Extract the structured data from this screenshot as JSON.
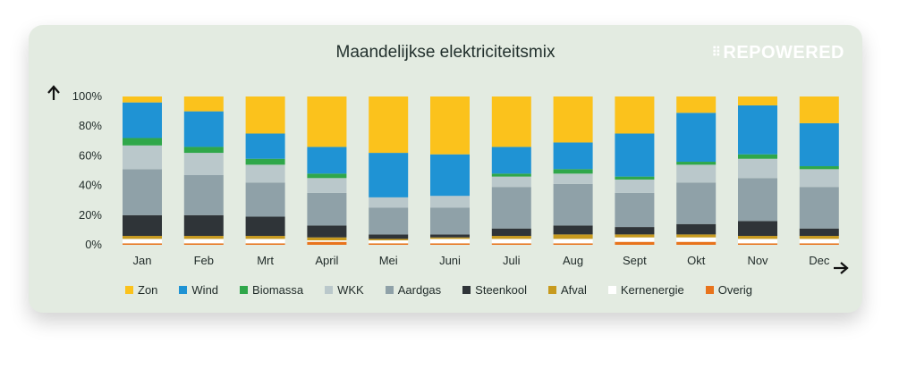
{
  "brand": {
    "mark": "⠿",
    "name": "REPOWERED"
  },
  "chart_data": {
    "type": "bar",
    "stacked": true,
    "title": "Maandelijkse elektriciteitsmix",
    "yticks": [
      "100%",
      "80%",
      "60%",
      "40%",
      "20%",
      "0%"
    ],
    "ylim": [
      0,
      100
    ],
    "categories": [
      "Jan",
      "Feb",
      "Mrt",
      "April",
      "Mei",
      "Juni",
      "Juli",
      "Aug",
      "Sept",
      "Okt",
      "Nov",
      "Dec"
    ],
    "series": [
      {
        "name": "Overig",
        "color": "#e8731c",
        "values": [
          1,
          1,
          1,
          2,
          1,
          1,
          1,
          1,
          2,
          2,
          1,
          1
        ]
      },
      {
        "name": "Kernenergie",
        "color": "#ffffff",
        "values": [
          3,
          3,
          3,
          1,
          2,
          3,
          3,
          3,
          3,
          3,
          3,
          3
        ]
      },
      {
        "name": "Afval",
        "color": "#c79a1e",
        "values": [
          2,
          2,
          2,
          2,
          1,
          1,
          2,
          3,
          2,
          2,
          2,
          2
        ]
      },
      {
        "name": "Steenkool",
        "color": "#2f3438",
        "values": [
          14,
          14,
          13,
          8,
          3,
          2,
          5,
          6,
          5,
          7,
          10,
          5
        ]
      },
      {
        "name": "Aardgas",
        "color": "#8fa1a8",
        "values": [
          31,
          27,
          23,
          22,
          18,
          18,
          28,
          28,
          23,
          28,
          29,
          28
        ]
      },
      {
        "name": "WKK",
        "color": "#bac8cb",
        "values": [
          16,
          15,
          12,
          10,
          7,
          8,
          7,
          7,
          9,
          12,
          13,
          12
        ]
      },
      {
        "name": "Biomassa",
        "color": "#2fa74a",
        "values": [
          5,
          4,
          4,
          3,
          0,
          0,
          2,
          3,
          2,
          2,
          3,
          2
        ]
      },
      {
        "name": "Wind",
        "color": "#1f93d4",
        "values": [
          24,
          24,
          17,
          18,
          30,
          28,
          18,
          18,
          29,
          33,
          33,
          29
        ]
      },
      {
        "name": "Zon",
        "color": "#fbc21c",
        "values": [
          4,
          10,
          25,
          34,
          38,
          39,
          34,
          31,
          25,
          11,
          6,
          18
        ]
      }
    ],
    "legend_order": [
      "Zon",
      "Wind",
      "Biomassa",
      "WKK",
      "Aardgas",
      "Steenkool",
      "Afval",
      "Kernenergie",
      "Overig"
    ],
    "legend_position": "bottom",
    "grid": false
  }
}
